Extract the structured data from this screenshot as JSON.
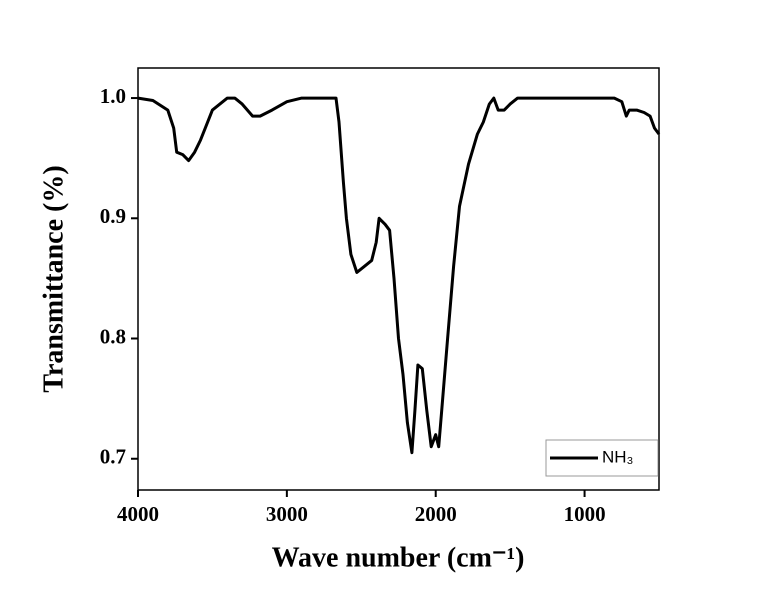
{
  "chart_data": {
    "type": "line",
    "xlabel": "Wave number (cm⁻¹)",
    "ylabel": "Transmittance (%)",
    "xlim": [
      4000,
      500
    ],
    "ylim": [
      0.674,
      1.025
    ],
    "xticks": [
      4000,
      3000,
      2000,
      1000
    ],
    "yticks": [
      0.7,
      0.8,
      0.9,
      {
        "value": 1,
        "label": "1.0"
      }
    ],
    "legend": "lower right",
    "x": [
      4000,
      3900,
      3800,
      3760,
      3740,
      3700,
      3660,
      3620,
      3580,
      3500,
      3400,
      3350,
      3300,
      3230,
      3180,
      3100,
      3000,
      2900,
      2800,
      2670,
      2650,
      2620,
      2600,
      2570,
      2530,
      2480,
      2430,
      2400,
      2380,
      2340,
      2310,
      2280,
      2250,
      2220,
      2190,
      2160,
      2140,
      2120,
      2090,
      2060,
      2030,
      2000,
      1980,
      1960,
      1920,
      1880,
      1840,
      1780,
      1720,
      1680,
      1640,
      1610,
      1580,
      1540,
      1500,
      1450,
      1300,
      1000,
      800,
      750,
      720,
      700,
      650,
      600,
      560,
      530,
      500
    ],
    "series": [
      {
        "name": "NH₃",
        "color": "#000000",
        "values": [
          1.0,
          0.998,
          0.99,
          0.975,
          0.955,
          0.953,
          0.948,
          0.955,
          0.965,
          0.99,
          1.0,
          1.0,
          0.995,
          0.985,
          0.985,
          0.99,
          0.997,
          1.0,
          1.0,
          1.0,
          0.98,
          0.93,
          0.9,
          0.87,
          0.855,
          0.86,
          0.865,
          0.88,
          0.9,
          0.895,
          0.89,
          0.85,
          0.8,
          0.77,
          0.73,
          0.705,
          0.74,
          0.778,
          0.775,
          0.74,
          0.71,
          0.72,
          0.71,
          0.74,
          0.8,
          0.86,
          0.91,
          0.945,
          0.97,
          0.98,
          0.995,
          1.0,
          0.99,
          0.99,
          0.995,
          1.0,
          1.0,
          1.0,
          1.0,
          0.997,
          0.985,
          0.99,
          0.99,
          0.988,
          0.985,
          0.975,
          0.97
        ]
      }
    ]
  }
}
